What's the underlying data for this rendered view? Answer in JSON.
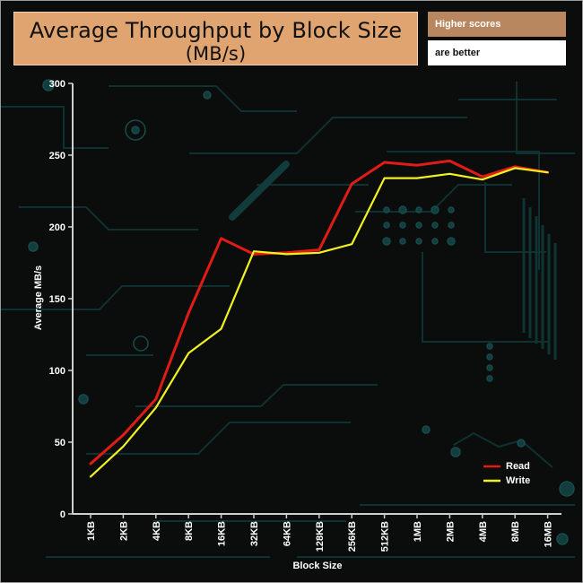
{
  "title": {
    "line1": "Average Throughput by Block Size",
    "line2": "(MB/s)"
  },
  "notes": [
    "Higher scores",
    "are better"
  ],
  "chart_data": {
    "type": "line",
    "title": "Average Throughput by Block Size (MB/s)",
    "xlabel": "Block Size",
    "ylabel": "Average MB/s",
    "categories": [
      "1KB",
      "2KB",
      "4KB",
      "8KB",
      "16KB",
      "32KB",
      "64KB",
      "128KB",
      "256KB",
      "512KB",
      "1MB",
      "2MB",
      "4MB",
      "8MB",
      "16MB"
    ],
    "series": [
      {
        "name": "Read",
        "color": "#e11b16",
        "values": [
          35,
          55,
          80,
          140,
          192,
          181,
          182,
          184,
          230,
          245,
          243,
          246,
          235,
          242,
          238
        ]
      },
      {
        "name": "Write",
        "color": "#f2f21f",
        "values": [
          26,
          47,
          74,
          112,
          129,
          183,
          181,
          182,
          188,
          234,
          234,
          237,
          233,
          241,
          238
        ]
      }
    ],
    "ylim": [
      0,
      300
    ],
    "yticks": [
      0,
      50,
      100,
      150,
      200,
      250,
      300
    ],
    "legend_position": "bottom-right",
    "grid": false
  }
}
